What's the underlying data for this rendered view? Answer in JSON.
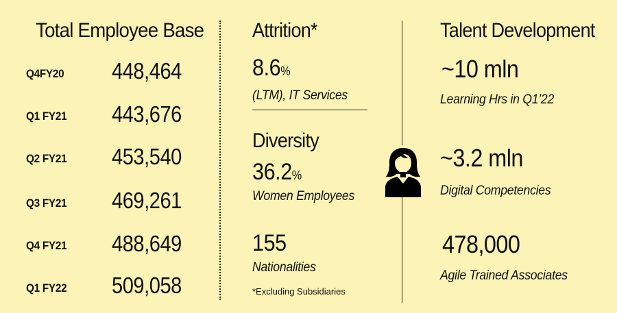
{
  "employee_base": {
    "title": "Total Employee Base",
    "rows": [
      {
        "quarter": "Q4FY20",
        "value": "448,464"
      },
      {
        "quarter": "Q1 FY21",
        "value": "443,676"
      },
      {
        "quarter": "Q2 FY21",
        "value": "453,540"
      },
      {
        "quarter": "Q3 FY21",
        "value": "469,261"
      },
      {
        "quarter": "Q4 FY21",
        "value": "488,649"
      },
      {
        "quarter": "Q1 FY22",
        "value": "509,058"
      }
    ]
  },
  "attrition": {
    "title": "Attrition*",
    "value": "8.6",
    "unit": "%",
    "caption": "(LTM), IT Services"
  },
  "diversity": {
    "title": "Diversity",
    "value": "36.2",
    "unit": "%",
    "caption": "Women Employees"
  },
  "nationalities": {
    "value": "155",
    "caption": "Nationalities"
  },
  "footnote": "*Excluding Subsidiaries",
  "talent": {
    "title": "Talent Development",
    "items": [
      {
        "value": "~10 mln",
        "caption": "Learning Hrs in Q1’22"
      },
      {
        "value": "~3.2 mln",
        "caption": "Digital Competencies"
      },
      {
        "value": "478,000",
        "caption": "Agile Trained Associates"
      }
    ]
  },
  "icons": {
    "person": "woman-person-icon"
  }
}
